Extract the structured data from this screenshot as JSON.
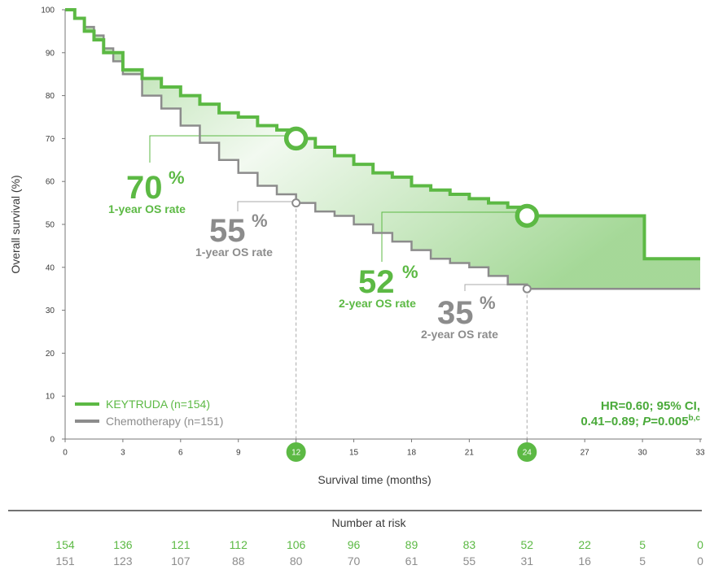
{
  "chart_data": {
    "type": "line",
    "xlabel": "Survival time (months)",
    "ylabel": "Overall survival (%)",
    "xlim": [
      0,
      33
    ],
    "ylim": [
      0,
      100
    ],
    "x_ticks": [
      "0",
      "3",
      "6",
      "9",
      "12",
      "15",
      "18",
      "21",
      "24",
      "27",
      "30",
      "33"
    ],
    "x_ticks_highlighted": [
      "12",
      "24"
    ],
    "y_ticks": [
      "0",
      "10",
      "20",
      "30",
      "40",
      "50",
      "60",
      "70",
      "80",
      "90",
      "100"
    ],
    "colors": {
      "keytruda": "#5cb944",
      "chemotherapy": "#8c8c8c",
      "highlight_circle": "#5cb944",
      "fill": "#5cb944"
    },
    "series": [
      {
        "name": "KEYTRUDA (n=154)",
        "color": "#5cb944",
        "x": [
          0,
          0.5,
          1.0,
          1.5,
          2.0,
          3.0,
          4.0,
          5.0,
          6.0,
          7.0,
          8.0,
          9.0,
          10.0,
          11.0,
          12.0,
          13.0,
          14.0,
          15.0,
          16.0,
          17.0,
          18.0,
          19.0,
          20.0,
          21.0,
          22.0,
          23.0,
          24.0,
          26.0,
          28.0,
          30.0,
          30.1,
          33.0
        ],
        "y": [
          100,
          98,
          95,
          93,
          90,
          86,
          84,
          82,
          80,
          78,
          76,
          75,
          73,
          72,
          70,
          68,
          66,
          64,
          62,
          61,
          59,
          58,
          57,
          56,
          55,
          54,
          52,
          52,
          52,
          52,
          42,
          42
        ]
      },
      {
        "name": "Chemotherapy (n=151)",
        "color": "#8c8c8c",
        "x": [
          0,
          0.5,
          1.0,
          1.5,
          2.0,
          2.5,
          3.0,
          4.0,
          5.0,
          6.0,
          7.0,
          8.0,
          9.0,
          10.0,
          11.0,
          12.0,
          13.0,
          14.0,
          15.0,
          16.0,
          17.0,
          18.0,
          19.0,
          20.0,
          21.0,
          22.0,
          23.0,
          24.0,
          25.0,
          30.0,
          33.0
        ],
        "y": [
          100,
          98,
          96,
          94,
          91,
          88,
          85,
          80,
          77,
          73,
          69,
          65,
          62,
          59,
          57,
          55,
          53,
          52,
          50,
          48,
          46,
          44,
          42,
          41,
          40,
          38,
          36,
          35,
          35,
          35,
          35
        ]
      }
    ],
    "markers": [
      {
        "series": "KEYTRUDA (n=154)",
        "x": 12,
        "y": 70,
        "value": "70",
        "unit": "%",
        "label": "1-year OS rate"
      },
      {
        "series": "Chemotherapy (n=151)",
        "x": 12,
        "y": 55,
        "value": "55",
        "unit": "%",
        "label": "1-year OS rate"
      },
      {
        "series": "KEYTRUDA (n=154)",
        "x": 24,
        "y": 52,
        "value": "52",
        "unit": "%",
        "label": "2-year OS rate"
      },
      {
        "series": "Chemotherapy (n=151)",
        "x": 24,
        "y": 35,
        "value": "35",
        "unit": "%",
        "label": "2-year OS rate"
      }
    ],
    "legend": {
      "placement": "bottom-left",
      "entries": [
        "KEYTRUDA (n=154)",
        "Chemotherapy (n=151)"
      ]
    },
    "annotation": {
      "line1": "HR=0.60; 95% CI,",
      "line2_prefix": "0.41–0.89; ",
      "line2_p": "P",
      "line2_value": "=0.005",
      "line2_sup": "b,c"
    },
    "number_at_risk": {
      "title": "Number at risk",
      "keytruda": [
        "154",
        "136",
        "121",
        "112",
        "106",
        "96",
        "89",
        "83",
        "52",
        "22",
        "5",
        "0"
      ],
      "chemotherapy": [
        "151",
        "123",
        "107",
        "88",
        "80",
        "70",
        "61",
        "55",
        "31",
        "16",
        "5",
        "0"
      ]
    }
  }
}
